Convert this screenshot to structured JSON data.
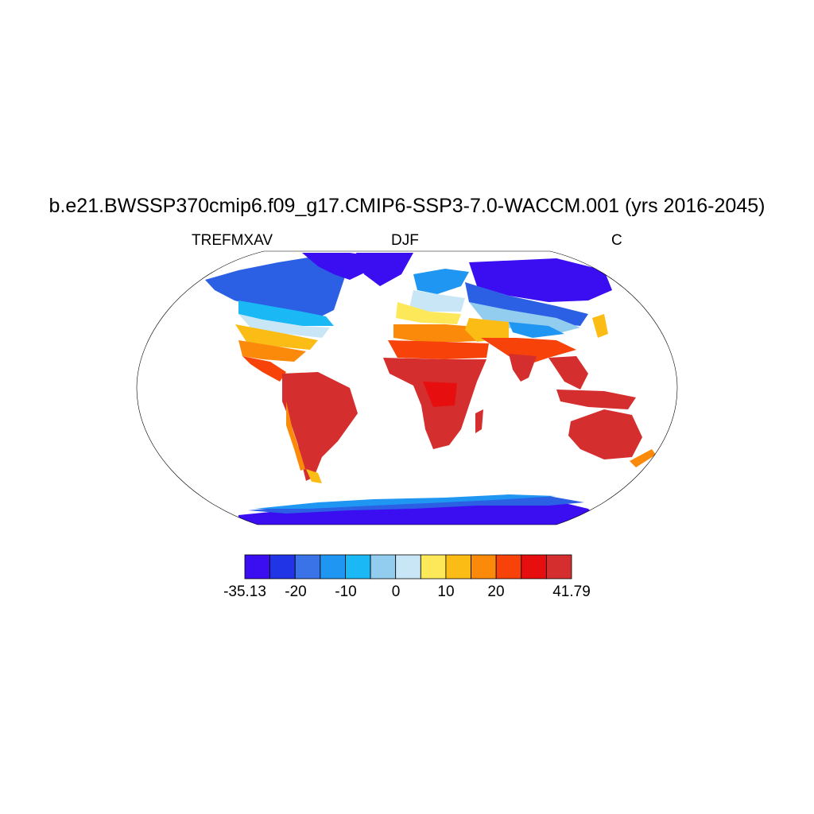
{
  "title": "b.e21.BWSSP370cmip6.f09_g17.CMIP6-SSP3-7.0-WACCM.001 (yrs 2016-2045)",
  "variable": "TREFMXAV",
  "season": "DJF",
  "units": "C",
  "colorbar": {
    "labels": [
      "-35.13",
      "-20",
      "-10",
      "0",
      "10",
      "20",
      "41.79"
    ],
    "colors": [
      "#3b0ef2",
      "#2135e6",
      "#3a73e8",
      "#1f96f2",
      "#1ab8f5",
      "#92cdef",
      "#c9e6f6",
      "#fde85a",
      "#fbbc16",
      "#fb8a0a",
      "#f7420a",
      "#e60e0e",
      "#d42e2e"
    ]
  },
  "map": {
    "projection": "Robinson",
    "land_color_notes": "continents filled by temperature class"
  }
}
